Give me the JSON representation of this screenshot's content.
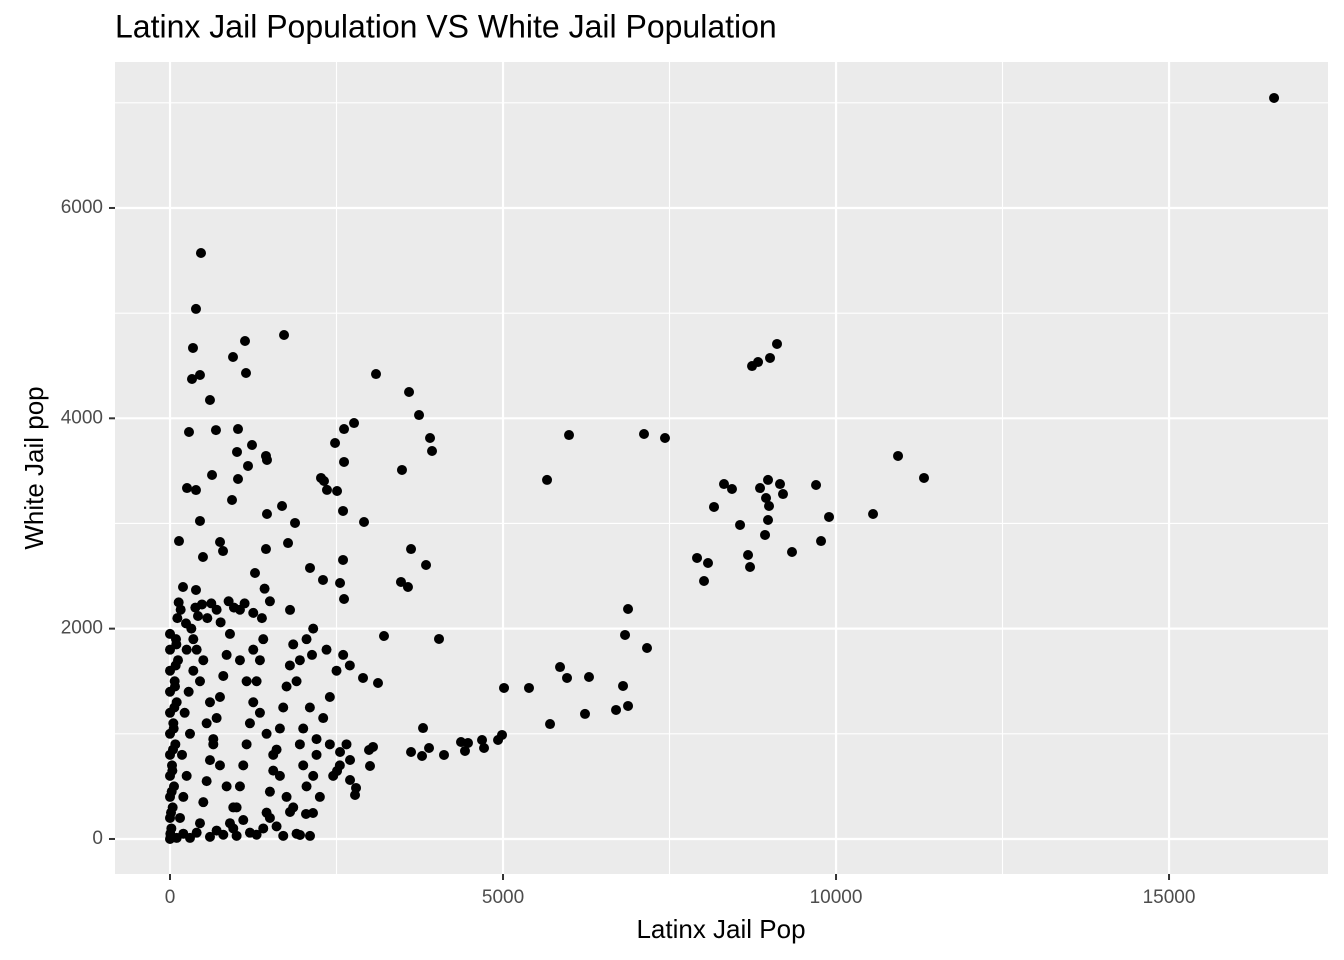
{
  "chart_data": {
    "type": "scatter",
    "title": "Latinx Jail Population VS White Jail Population",
    "x_label": "Latinx Jail Pop",
    "y_label": "White Jail pop",
    "color": "#000000",
    "grid": true,
    "xlim": [
      -826,
      17387
    ],
    "ylim": [
      -333,
      7388
    ],
    "xticks": [
      0,
      5000,
      10000,
      15000
    ],
    "yticks": [
      0,
      2000,
      4000,
      6000
    ],
    "x_minor_breaks": [
      2500,
      7500,
      12500
    ],
    "y_minor_breaks": [
      1000,
      3000,
      5000,
      7000
    ],
    "x": [
      16577,
      465,
      390,
      1712,
      1126,
      345,
      946,
      1141,
      3093,
      330,
      450,
      3589,
      600,
      3739,
      2763,
      285,
      1021,
      690,
      3904,
      2613,
      5991,
      7117,
      7432,
      3934,
      9114,
      9009,
      8829,
      8739,
      10931,
      11321,
      8318,
      8438,
      8979,
      9159,
      8859,
      9700,
      9204,
      8949,
      8994,
      8168,
      10556,
      9895,
      8979,
      8559,
      9775,
      8934,
      9339,
      8679,
      7913,
      8078,
      8018,
      8709,
      5661,
      6877,
      6832,
      7162,
      5856,
      5961,
      6291,
      6802,
      6877,
      6697,
      6231,
      5706,
      5390,
      5015,
      4985,
      4925,
      4685,
      4474,
      4369,
      4429,
      4715,
      4114,
      3889,
      3784,
      3619,
      3799,
      4039,
      3483,
      3619,
      3844,
      3573,
      3468,
      3213,
      3123,
      2898,
      3003,
      2988,
      2793,
      2478,
      2508,
      2598,
      2613,
      2913,
      2312,
      2357,
      2267,
      1877,
      1682,
      1772,
      1456,
      1171,
      1231,
      1456,
      1441,
      631,
      1021,
      255,
      390,
      1006,
      450,
      931,
      495,
      135,
      796,
      751,
      1441,
      1276,
      195,
      390,
      1802,
      2102,
      2598,
      2553,
      2297,
      2613,
      2132,
      3048,
      2703,
      2778,
      1802,
      1952,
      2102,
      2042,
      2147,
      2553,
      2703,
      2508,
      20,
      40,
      60,
      30,
      80,
      50,
      100,
      70,
      120,
      90,
      150,
      200,
      250,
      180,
      300,
      220,
      280,
      350,
      400,
      320,
      450,
      500,
      550,
      600,
      650,
      700,
      750,
      800,
      850,
      900,
      950,
      1000,
      1050,
      1100,
      1150,
      1200,
      1250,
      1300,
      1350,
      1400,
      1450,
      1500,
      1550,
      1600,
      1650,
      1700,
      1750,
      1800,
      1850,
      1900,
      10,
      5,
      15,
      25,
      35,
      45,
      55,
      65,
      75,
      85,
      95,
      110,
      130,
      160,
      240,
      380,
      420,
      480,
      560,
      620,
      700,
      760,
      880,
      960,
      1050,
      1120,
      1250,
      1380,
      1420,
      1500,
      2000,
      2100,
      2200,
      2300,
      2400,
      2500,
      2600,
      2700,
      2000,
      2200,
      2400,
      1900,
      1950,
      2050,
      2150,
      2350,
      1000,
      1200,
      1400,
      800,
      600,
      400,
      300,
      700,
      1300,
      1600,
      1700,
      1500,
      900,
      1100,
      200,
      100,
      0,
      0,
      0,
      0,
      0,
      0,
      0,
      0,
      0,
      0,
      0,
      250,
      350,
      500,
      450,
      600,
      550,
      650,
      750,
      850,
      950,
      1050,
      1150,
      1250,
      1350,
      1450,
      1550,
      1650,
      1750,
      1850,
      1950,
      2050,
      2150,
      2250,
      2450,
      2550,
      2650
    ],
    "values": [
      7046,
      5572,
      5040,
      4792,
      4735,
      4669,
      4583,
      4431,
      4421,
      4374,
      4412,
      4250,
      4174,
      4031,
      3955,
      3870,
      3898,
      3888,
      3813,
      3898,
      3841,
      3851,
      3813,
      3689,
      4707,
      4574,
      4535,
      4497,
      3642,
      3433,
      3375,
      3328,
      3414,
      3375,
      3337,
      3366,
      3280,
      3242,
      3166,
      3157,
      3090,
      3062,
      3033,
      2986,
      2833,
      2891,
      2729,
      2700,
      2672,
      2624,
      2453,
      2586,
      3414,
      2187,
      1940,
      1816,
      1635,
      1531,
      1540,
      1455,
      1265,
      1227,
      1189,
      1093,
      1436,
      1436,
      989,
      941,
      941,
      913,
      922,
      837,
      865,
      799,
      865,
      789,
      827,
      1055,
      1902,
      3509,
      2757,
      2605,
      2396,
      2444,
      1930,
      1483,
      1531,
      694,
      846,
      485,
      3765,
      3309,
      3119,
      3585,
      3014,
      3404,
      3319,
      3433,
      3005,
      3166,
      2814,
      3090,
      3547,
      3746,
      3604,
      3642,
      3461,
      3423,
      3337,
      3318,
      3680,
      3024,
      3223,
      2681,
      2833,
      2738,
      2824,
      2757,
      2529,
      2396,
      2368,
      2178,
      2577,
      2653,
      2434,
      2463,
      2282,
      1750,
      875,
      561,
      418,
      257,
      38,
      29,
      238,
      247,
      827,
      751,
      647,
      100,
      300,
      500,
      700,
      900,
      1100,
      1300,
      1500,
      1700,
      1900,
      200,
      400,
      600,
      800,
      1000,
      1200,
      1400,
      1600,
      1800,
      2000,
      150,
      350,
      550,
      750,
      950,
      1150,
      1350,
      1550,
      1750,
      1950,
      100,
      300,
      500,
      700,
      900,
      1100,
      1300,
      1500,
      1700,
      1900,
      250,
      450,
      650,
      850,
      1050,
      1250,
      1450,
      1650,
      1850,
      50,
      20,
      50,
      250,
      450,
      650,
      850,
      1050,
      1250,
      1450,
      1650,
      1850,
      2100,
      2250,
      2180,
      2050,
      2200,
      2120,
      2230,
      2100,
      2240,
      2180,
      2060,
      2260,
      2200,
      2180,
      2240,
      2150,
      2100,
      2380,
      2260,
      1050,
      1250,
      950,
      1150,
      1350,
      1600,
      1750,
      1650,
      700,
      800,
      900,
      1500,
      1700,
      1900,
      2000,
      1800,
      30,
      60,
      100,
      40,
      20,
      60,
      10,
      80,
      40,
      120,
      30,
      200,
      150,
      180,
      50,
      10,
      0,
      200,
      400,
      600,
      800,
      1000,
      1200,
      1400,
      1600,
      1800,
      1950,
      1800,
      1900,
      1700,
      1500,
      1300,
      1100,
      900,
      700,
      500,
      300,
      1700,
      1500,
      1800,
      1200,
      1000,
      800,
      600,
      400,
      300,
      900,
      500,
      600,
      400,
      600,
      700,
      900
    ]
  }
}
